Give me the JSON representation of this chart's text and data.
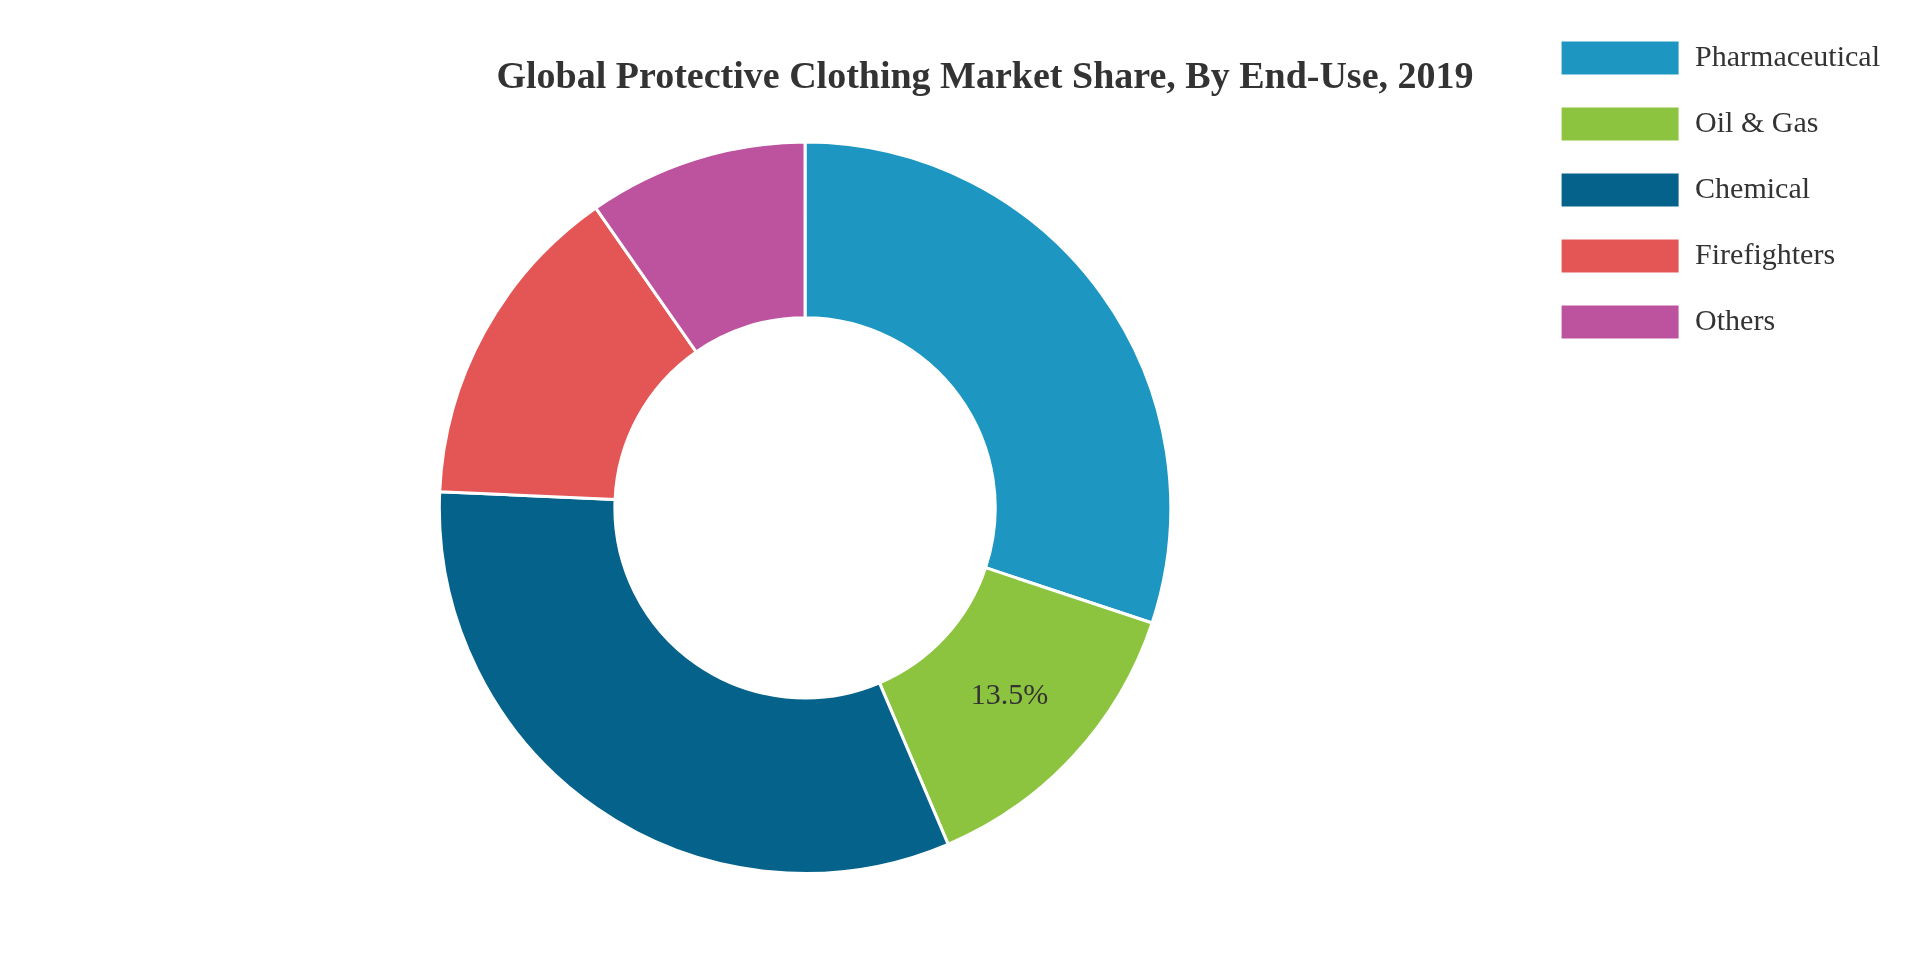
{
  "chart_data": {
    "type": "donut",
    "title": "Global Protective Clothing Market Share, By End-Use, 2019",
    "categories": [
      "Pharmaceutical",
      "Oil & Gas",
      "Chemical",
      "Firefighters",
      "Others"
    ],
    "values": [
      30.1,
      13.5,
      32.1,
      14.6,
      9.7
    ],
    "colors": [
      "#1d97c1",
      "#8dc43f",
      "#05628a",
      "#e45555",
      "#bd539f"
    ],
    "value_labels": [
      null,
      "13.5%",
      null,
      null,
      null
    ],
    "legend": "top right"
  }
}
